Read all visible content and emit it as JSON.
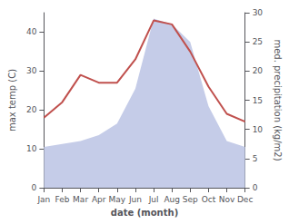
{
  "chart_data": {
    "type": "line",
    "xlabel": "date (month)",
    "ylabel": "max temp (C)",
    "y2label": "med. precipitation (kg/m2)",
    "categories": [
      "Jan",
      "Feb",
      "Mar",
      "Apr",
      "May",
      "Jun",
      "Jul",
      "Aug",
      "Sep",
      "Oct",
      "Nov",
      "Dec"
    ],
    "series": [
      {
        "type": "area",
        "color": "#c5cce8",
        "axis": "y2",
        "values": [
          7,
          7.5,
          8,
          9,
          11,
          17,
          29,
          28,
          25,
          14,
          8,
          7
        ]
      },
      {
        "type": "line",
        "color": "#c0504d",
        "values": [
          18,
          22,
          29,
          27,
          27,
          33,
          43,
          42,
          35,
          26,
          19,
          17
        ]
      }
    ],
    "ylim": [
      0,
      45
    ],
    "yticks": [
      0,
      10,
      20,
      30,
      40
    ],
    "y2lim": [
      0,
      30
    ],
    "y2ticks": [
      0,
      5,
      10,
      15,
      20,
      25,
      30
    ],
    "grid": false
  }
}
